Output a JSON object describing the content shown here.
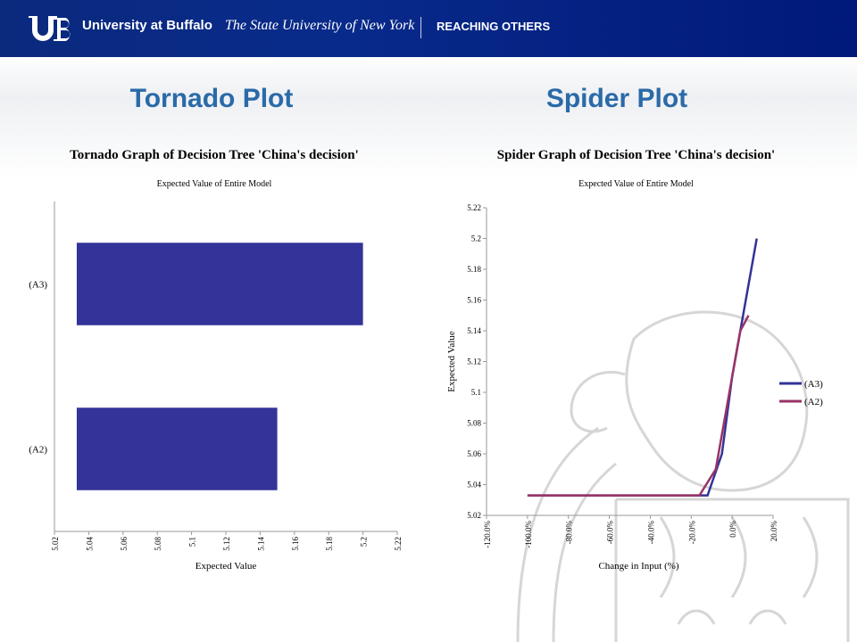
{
  "header": {
    "university": "University at Buffalo",
    "state": "The State University of New York",
    "tagline": "REACHING OTHERS"
  },
  "slide": {
    "left_title": "Tornado Plot",
    "right_title": "Spider Plot"
  },
  "chart_data": [
    {
      "type": "bar",
      "orientation": "horizontal",
      "title": "Tornado Graph of Decision Tree 'China's decision'",
      "subtitle": "Expected Value of Entire Model",
      "xlabel": "Expected Value",
      "xlim": [
        5.02,
        5.22
      ],
      "xticks": [
        "5.02",
        "5.04",
        "5.06",
        "5.08",
        "5.1",
        "5.12",
        "5.14",
        "5.16",
        "5.18",
        "5.2",
        "5.22"
      ],
      "categories": [
        "(A3)",
        "(A2)"
      ],
      "bars": [
        {
          "label": "(A3)",
          "low": 5.033,
          "high": 5.2
        },
        {
          "label": "(A2)",
          "low": 5.033,
          "high": 5.15
        }
      ],
      "color": "#333399"
    },
    {
      "type": "line",
      "title": "Spider Graph of Decision Tree 'China's decision'",
      "subtitle": "Expected Value of Entire Model",
      "xlabel": "Change in Input (%)",
      "ylabel": "Expected Value",
      "xlim": [
        -120,
        20
      ],
      "ylim": [
        5.02,
        5.22
      ],
      "xticks": [
        "-120.0%",
        "-100.0%",
        "-80.0%",
        "-60.0%",
        "-40.0%",
        "-20.0%",
        "0.0%",
        "20.0%"
      ],
      "yticks": [
        "5.02",
        "5.04",
        "5.06",
        "5.08",
        "5.1",
        "5.12",
        "5.14",
        "5.16",
        "5.18",
        "5.2",
        "5.22"
      ],
      "legend_position": "right",
      "series": [
        {
          "name": "(A3)",
          "color": "#333399",
          "x": [
            -100,
            -20,
            -12,
            -5,
            0,
            12
          ],
          "y": [
            5.033,
            5.033,
            5.033,
            5.06,
            5.11,
            5.2
          ]
        },
        {
          "name": "(A2)",
          "color": "#993366",
          "x": [
            -100,
            -16,
            -8,
            0,
            4,
            8
          ],
          "y": [
            5.033,
            5.033,
            5.05,
            5.11,
            5.14,
            5.15
          ]
        }
      ]
    }
  ]
}
